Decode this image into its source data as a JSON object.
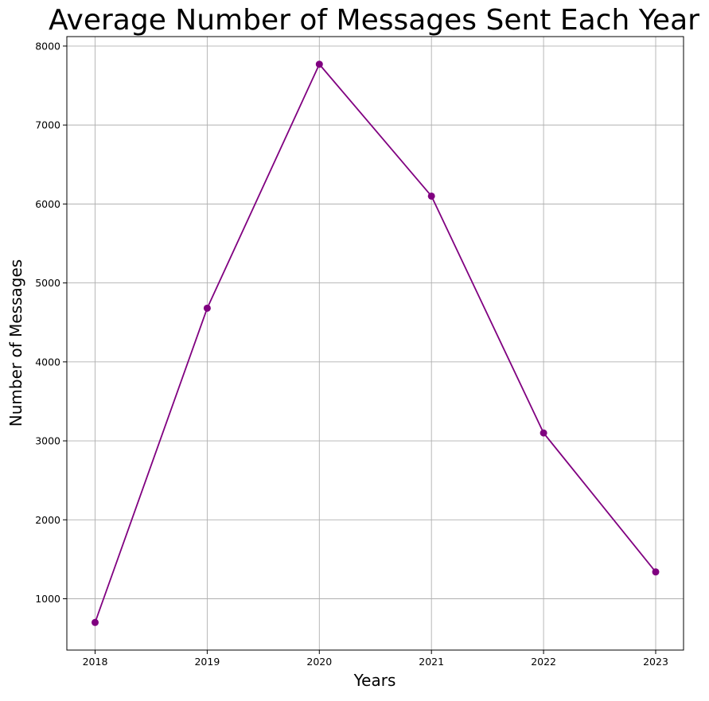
{
  "chart_data": {
    "type": "line",
    "title": "Average Number of Messages Sent Each Year",
    "xlabel": "Years",
    "ylabel": "Number of Messages",
    "categories": [
      "2018",
      "2019",
      "2020",
      "2021",
      "2022",
      "2023"
    ],
    "series": [
      {
        "values": [
          700,
          4680,
          7770,
          6100,
          3100,
          1340
        ]
      }
    ],
    "ylim": [
      350,
      8120
    ],
    "y_ticks": [
      1000,
      2000,
      3000,
      4000,
      5000,
      6000,
      7000,
      8000
    ],
    "grid": true,
    "line_color": "#800080",
    "marker": "circle",
    "grid_color": "#b0b0b0"
  }
}
